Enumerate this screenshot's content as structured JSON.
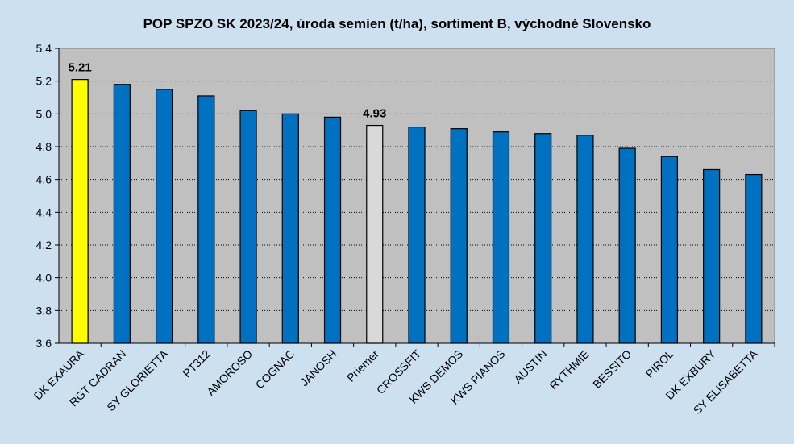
{
  "chart_data": {
    "type": "bar",
    "title": "POP SPZO SK 2023/24, úroda semien (t/ha), sortiment B, východné Slovensko",
    "xlabel": "",
    "ylabel": "",
    "ylim": [
      3.6,
      5.4
    ],
    "yticks": [
      "3.6",
      "3.8",
      "4.0",
      "4.2",
      "4.4",
      "4.6",
      "4.8",
      "5.0",
      "5.2",
      "5.4"
    ],
    "grid": true,
    "categories": [
      "DK EXAURA",
      "RGT CADRAN",
      "SY GLORIETTA",
      "PT312",
      "AMOROSO",
      "COGNAC",
      "JANOSH",
      "Priemer",
      "CROSSFIT",
      "KWS DEMOS",
      "KWS PIANOS",
      "AUSTIN",
      "RYTHMIE",
      "BESSITO",
      "PIROL",
      "DK EXBURY",
      "SY ELISABETTA"
    ],
    "values": [
      5.21,
      5.18,
      5.15,
      5.11,
      5.02,
      5.0,
      4.98,
      4.93,
      4.92,
      4.91,
      4.89,
      4.88,
      4.87,
      4.79,
      4.74,
      4.66,
      4.63
    ],
    "bar_colors": [
      "#ffff00",
      "#0070c0",
      "#0070c0",
      "#0070c0",
      "#0070c0",
      "#0070c0",
      "#0070c0",
      "#d9d9d9",
      "#0070c0",
      "#0070c0",
      "#0070c0",
      "#0070c0",
      "#0070c0",
      "#0070c0",
      "#0070c0",
      "#0070c0",
      "#0070c0"
    ],
    "data_labels": [
      {
        "index": 0,
        "text": "5.21"
      },
      {
        "index": 7,
        "text": "4.93"
      }
    ],
    "plot_background": "#c0c0c0",
    "page_background": "#cce0f0"
  }
}
